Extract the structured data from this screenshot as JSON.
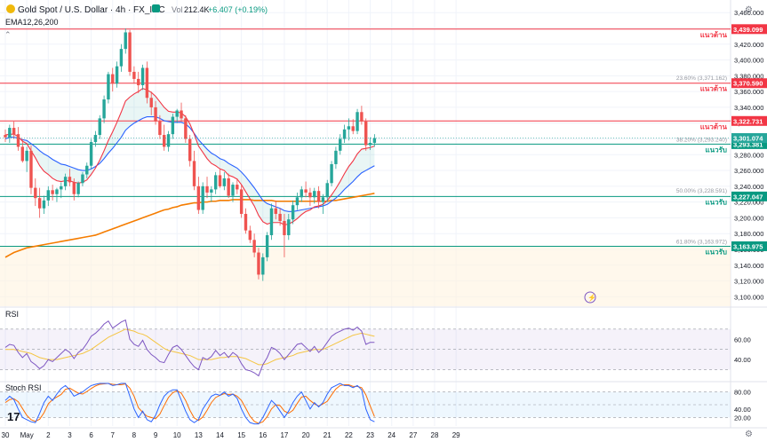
{
  "header": {
    "symbol": "Gold Spot / U.S. Dollar · 4h · FX_IDC",
    "vol_label": "Vol",
    "vol_value": "212.4K",
    "change": "+6.407 (+0.19%)",
    "ema_label": "EMA12,26,200"
  },
  "colors": {
    "up": "#26a69a",
    "down": "#ef5350",
    "ema12": "#f23645",
    "ema26": "#2962ff",
    "ema200": "#f57c00",
    "resistance": "#f23645",
    "support": "#089981",
    "rsi": "#7e57c2",
    "rsi_ma": "#f5c542",
    "stoch_k": "#2962ff",
    "stoch_d": "#ff6d00"
  },
  "chart_data": [
    {
      "type": "candlestick",
      "title": "Gold Spot / U.S. Dollar · 4h · FX_IDC",
      "y_axis": {
        "ticks": [
          "3,460.000",
          "3,440.000",
          "3,420.000",
          "3,400.000",
          "3,380.000",
          "3,360.000",
          "3,340.000",
          "3,320.000",
          "3,300.000",
          "3,280.000",
          "3,260.000",
          "3,240.000",
          "3,220.000",
          "3,200.000",
          "3,180.000",
          "3,160.000",
          "3,140.000",
          "3,120.000",
          "3,100.000"
        ],
        "ylim": [
          3088,
          3476
        ]
      },
      "x_axis": {
        "ticks": [
          "30",
          "May",
          "2",
          "3",
          "6",
          "7",
          "8",
          "9",
          "10",
          "13",
          "14",
          "15",
          "16",
          "17",
          "20",
          "21",
          "22",
          "23",
          "24",
          "27",
          "28",
          "29"
        ],
        "tick_pos": [
          0,
          5,
          10,
          15,
          20,
          25,
          30,
          35,
          40,
          45,
          50,
          55,
          60,
          65,
          70,
          75,
          80,
          85,
          90,
          95,
          100,
          105
        ]
      },
      "candles": [
        [
          3305,
          3312,
          3296,
          3302
        ],
        [
          3302,
          3318,
          3295,
          3314
        ],
        [
          3314,
          3322,
          3300,
          3306
        ],
        [
          3306,
          3315,
          3285,
          3290
        ],
        [
          3290,
          3300,
          3270,
          3272
        ],
        [
          3272,
          3290,
          3258,
          3285
        ],
        [
          3285,
          3292,
          3230,
          3238
        ],
        [
          3238,
          3250,
          3215,
          3225
        ],
        [
          3225,
          3238,
          3200,
          3212
        ],
        [
          3212,
          3228,
          3205,
          3222
        ],
        [
          3222,
          3240,
          3215,
          3235
        ],
        [
          3235,
          3242,
          3222,
          3230
        ],
        [
          3230,
          3238,
          3220,
          3236
        ],
        [
          3236,
          3245,
          3225,
          3240
        ],
        [
          3240,
          3256,
          3235,
          3252
        ],
        [
          3252,
          3262,
          3240,
          3245
        ],
        [
          3245,
          3250,
          3222,
          3230
        ],
        [
          3230,
          3246,
          3226,
          3244
        ],
        [
          3244,
          3258,
          3240,
          3255
        ],
        [
          3255,
          3270,
          3250,
          3266
        ],
        [
          3266,
          3300,
          3262,
          3296
        ],
        [
          3296,
          3310,
          3290,
          3305
        ],
        [
          3305,
          3330,
          3300,
          3326
        ],
        [
          3326,
          3355,
          3320,
          3350
        ],
        [
          3350,
          3385,
          3345,
          3382
        ],
        [
          3382,
          3390,
          3360,
          3370
        ],
        [
          3370,
          3398,
          3365,
          3392
        ],
        [
          3392,
          3420,
          3385,
          3414
        ],
        [
          3414,
          3440,
          3408,
          3435
        ],
        [
          3435,
          3438,
          3380,
          3385
        ],
        [
          3385,
          3392,
          3370,
          3376
        ],
        [
          3376,
          3385,
          3358,
          3368
        ],
        [
          3368,
          3394,
          3362,
          3390
        ],
        [
          3390,
          3398,
          3345,
          3352
        ],
        [
          3352,
          3360,
          3330,
          3340
        ],
        [
          3340,
          3348,
          3318,
          3322
        ],
        [
          3322,
          3330,
          3300,
          3305
        ],
        [
          3305,
          3318,
          3285,
          3290
        ],
        [
          3290,
          3310,
          3284,
          3306
        ],
        [
          3306,
          3332,
          3300,
          3328
        ],
        [
          3328,
          3338,
          3320,
          3336
        ],
        [
          3336,
          3346,
          3322,
          3326
        ],
        [
          3326,
          3330,
          3295,
          3300
        ],
        [
          3300,
          3305,
          3265,
          3272
        ],
        [
          3272,
          3285,
          3235,
          3240
        ],
        [
          3240,
          3252,
          3205,
          3210
        ],
        [
          3210,
          3245,
          3205,
          3240
        ],
        [
          3240,
          3252,
          3225,
          3232
        ],
        [
          3232,
          3240,
          3220,
          3236
        ],
        [
          3236,
          3258,
          3230,
          3254
        ],
        [
          3254,
          3262,
          3238,
          3240
        ],
        [
          3240,
          3258,
          3235,
          3250
        ],
        [
          3250,
          3256,
          3225,
          3228
        ],
        [
          3228,
          3245,
          3220,
          3242
        ],
        [
          3242,
          3250,
          3230,
          3236
        ],
        [
          3236,
          3242,
          3200,
          3205
        ],
        [
          3205,
          3212,
          3180,
          3184
        ],
        [
          3184,
          3190,
          3168,
          3172
        ],
        [
          3172,
          3180,
          3150,
          3156
        ],
        [
          3156,
          3162,
          3122,
          3128
        ],
        [
          3128,
          3155,
          3120,
          3150
        ],
        [
          3150,
          3182,
          3145,
          3178
        ],
        [
          3178,
          3218,
          3172,
          3212
        ],
        [
          3212,
          3222,
          3198,
          3205
        ],
        [
          3205,
          3212,
          3190,
          3196
        ],
        [
          3196,
          3205,
          3150,
          3178
        ],
        [
          3178,
          3205,
          3172,
          3198
        ],
        [
          3198,
          3222,
          3192,
          3216
        ],
        [
          3216,
          3232,
          3210,
          3226
        ],
        [
          3226,
          3240,
          3220,
          3236
        ],
        [
          3236,
          3246,
          3226,
          3232
        ],
        [
          3232,
          3238,
          3215,
          3226
        ],
        [
          3226,
          3238,
          3218,
          3234
        ],
        [
          3234,
          3240,
          3212,
          3220
        ],
        [
          3220,
          3230,
          3205,
          3226
        ],
        [
          3226,
          3248,
          3220,
          3244
        ],
        [
          3244,
          3272,
          3240,
          3268
        ],
        [
          3268,
          3290,
          3262,
          3285
        ],
        [
          3285,
          3306,
          3280,
          3300
        ],
        [
          3300,
          3318,
          3295,
          3312
        ],
        [
          3312,
          3326,
          3298,
          3316
        ],
        [
          3316,
          3325,
          3306,
          3310
        ],
        [
          3310,
          3338,
          3306,
          3334
        ],
        [
          3334,
          3342,
          3318,
          3322
        ],
        [
          3322,
          3326,
          3285,
          3292
        ],
        [
          3292,
          3302,
          3286,
          3295
        ],
        [
          3295,
          3306,
          3290,
          3301
        ]
      ],
      "ema12": [
        3305,
        3306,
        3306,
        3303,
        3297,
        3294,
        3285,
        3276,
        3266,
        3259,
        3255,
        3250,
        3247,
        3246,
        3247,
        3247,
        3245,
        3244,
        3245,
        3248,
        3255,
        3263,
        3273,
        3285,
        3298,
        3309,
        3321,
        3334,
        3348,
        3353,
        3357,
        3360,
        3364,
        3362,
        3359,
        3354,
        3347,
        3340,
        3335,
        3334,
        3334,
        3333,
        3328,
        3319,
        3306,
        3291,
        3283,
        3275,
        3269,
        3266,
        3262,
        3260,
        3254,
        3252,
        3249,
        3242,
        3233,
        3224,
        3215,
        3203,
        3195,
        3192,
        3194,
        3194,
        3194,
        3191,
        3192,
        3195,
        3199,
        3204,
        3208,
        3210,
        3214,
        3215,
        3217,
        3222,
        3229,
        3237,
        3246,
        3256,
        3265,
        3272,
        3281,
        3287,
        3288,
        3289,
        3291
      ],
      "ema26": [
        3300,
        3302,
        3302,
        3301,
        3299,
        3298,
        3294,
        3290,
        3285,
        3281,
        3278,
        3274,
        3271,
        3268,
        3267,
        3265,
        3263,
        3261,
        3260,
        3260,
        3262,
        3265,
        3269,
        3275,
        3282,
        3288,
        3295,
        3302,
        3311,
        3316,
        3320,
        3323,
        3326,
        3328,
        3328,
        3328,
        3326,
        3323,
        3322,
        3321,
        3321,
        3321,
        3319,
        3314,
        3307,
        3299,
        3293,
        3287,
        3282,
        3279,
        3275,
        3273,
        3269,
        3266,
        3263,
        3258,
        3252,
        3245,
        3238,
        3230,
        3222,
        3218,
        3216,
        3214,
        3212,
        3209,
        3208,
        3208,
        3209,
        3210,
        3211,
        3212,
        3213,
        3214,
        3215,
        3217,
        3221,
        3225,
        3230,
        3236,
        3241,
        3246,
        3252,
        3257,
        3260,
        3263,
        3266
      ],
      "ema200": [
        3150,
        3153,
        3156,
        3158,
        3160,
        3162,
        3163,
        3164,
        3165,
        3166,
        3167,
        3168,
        3169,
        3170,
        3171,
        3172,
        3173,
        3174,
        3175,
        3176,
        3177,
        3178,
        3180,
        3182,
        3184,
        3186,
        3188,
        3190,
        3192,
        3194,
        3196,
        3198,
        3200,
        3202,
        3204,
        3206,
        3208,
        3210,
        3211,
        3213,
        3214,
        3216,
        3217,
        3218,
        3219,
        3219,
        3220,
        3220,
        3221,
        3221,
        3222,
        3222,
        3222,
        3223,
        3223,
        3223,
        3223,
        3223,
        3222,
        3222,
        3222,
        3222,
        3222,
        3221,
        3221,
        3221,
        3221,
        3221,
        3221,
        3221,
        3221,
        3221,
        3221,
        3221,
        3221,
        3221,
        3222,
        3222,
        3223,
        3224,
        3225,
        3226,
        3227,
        3228,
        3229,
        3230,
        3231
      ],
      "levels": [
        {
          "name": "resistance-1",
          "label": "แนวต้าน",
          "price": 3439.099,
          "price_text": "3,439.099",
          "kind": "resistance"
        },
        {
          "name": "resistance-2",
          "label": "แนวต้าน",
          "price": 3370.59,
          "price_text": "3,370.590",
          "kind": "resistance"
        },
        {
          "name": "resistance-3",
          "label": "แนวต้าน",
          "price": 3322.731,
          "price_text": "3,322.731",
          "kind": "resistance"
        },
        {
          "name": "support-1",
          "label": "แนวรับ",
          "price": 3293.381,
          "price_text": "3,293.381",
          "kind": "support"
        },
        {
          "name": "support-2",
          "label": "แนวรับ",
          "price": 3227.047,
          "price_text": "3,227.047",
          "kind": "support"
        },
        {
          "name": "support-3",
          "label": "แนวรับ",
          "price": 3163.975,
          "price_text": "3,163.975",
          "kind": "support"
        }
      ],
      "current_price": {
        "price": 3301.074,
        "price_text": "3,301.074"
      },
      "fib": [
        {
          "label": "23.60% (3,371.162)",
          "price": 3371.162
        },
        {
          "label": "38.20% (3,293.240)",
          "price": 3293.24
        },
        {
          "label": "50.00% (3,228.591)",
          "price": 3228.591
        },
        {
          "label": "61.80% (3,163.972)",
          "price": 3163.972
        }
      ]
    },
    {
      "type": "line",
      "title": "RSI",
      "ylim": [
        20,
        90
      ],
      "ticks": [
        "60.00",
        "40.00"
      ],
      "band": [
        30,
        70
      ],
      "rsi": [
        52,
        55,
        54,
        47,
        42,
        46,
        38,
        35,
        31,
        34,
        40,
        38,
        42,
        46,
        50,
        47,
        41,
        47,
        50,
        56,
        63,
        66,
        70,
        75,
        78,
        71,
        74,
        77,
        79,
        60,
        55,
        53,
        59,
        50,
        45,
        42,
        38,
        37,
        45,
        52,
        54,
        50,
        44,
        38,
        33,
        30,
        42,
        40,
        43,
        49,
        44,
        47,
        42,
        47,
        44,
        36,
        30,
        29,
        27,
        24,
        35,
        42,
        52,
        50,
        46,
        40,
        45,
        50,
        55,
        56,
        52,
        48,
        53,
        47,
        51,
        57,
        63,
        66,
        68,
        70,
        71,
        69,
        72,
        68,
        55,
        57,
        57
      ],
      "rsi_ma": [
        50,
        50,
        50,
        49,
        48,
        47,
        46,
        44,
        42,
        41,
        40,
        40,
        40,
        41,
        42,
        43,
        44,
        45,
        46,
        48,
        50,
        53,
        56,
        59,
        62,
        64,
        66,
        68,
        70,
        69,
        68,
        66,
        65,
        63,
        60,
        57,
        54,
        51,
        49,
        48,
        47,
        46,
        45,
        44,
        42,
        40,
        40,
        40,
        40,
        41,
        42,
        42,
        43,
        43,
        43,
        42,
        41,
        39,
        37,
        35,
        35,
        36,
        38,
        40,
        41,
        42,
        43,
        44,
        46,
        47,
        48,
        49,
        50,
        50,
        50,
        52,
        54,
        56,
        58,
        60,
        62,
        64,
        65,
        66,
        65,
        64,
        63
      ]
    },
    {
      "type": "line",
      "title": "Stoch RSI",
      "ylim": [
        0,
        100
      ],
      "ticks": [
        "80.00",
        "40.00",
        "20.00"
      ],
      "band": [
        20,
        80
      ],
      "k": [
        60,
        70,
        62,
        40,
        20,
        15,
        10,
        8,
        30,
        55,
        70,
        60,
        75,
        88,
        95,
        85,
        70,
        75,
        80,
        88,
        95,
        98,
        100,
        100,
        100,
        95,
        97,
        100,
        100,
        70,
        40,
        20,
        35,
        15,
        10,
        25,
        50,
        70,
        80,
        85,
        85,
        60,
        35,
        15,
        8,
        15,
        40,
        55,
        70,
        75,
        72,
        80,
        70,
        75,
        65,
        40,
        20,
        8,
        5,
        5,
        20,
        40,
        60,
        50,
        35,
        20,
        35,
        55,
        70,
        80,
        60,
        40,
        55,
        45,
        55,
        75,
        90,
        95,
        100,
        95,
        95,
        90,
        95,
        85,
        40,
        15,
        10
      ],
      "d": [
        55,
        62,
        64,
        57,
        41,
        25,
        15,
        11,
        16,
        31,
        52,
        62,
        68,
        74,
        86,
        89,
        83,
        77,
        75,
        81,
        88,
        94,
        98,
        99,
        100,
        98,
        97,
        97,
        99,
        89,
        70,
        43,
        32,
        23,
        20,
        17,
        28,
        48,
        67,
        78,
        83,
        77,
        60,
        37,
        19,
        13,
        21,
        37,
        55,
        67,
        72,
        76,
        74,
        75,
        70,
        60,
        42,
        23,
        11,
        6,
        10,
        22,
        40,
        50,
        48,
        35,
        30,
        37,
        53,
        68,
        70,
        60,
        52,
        47,
        52,
        58,
        73,
        87,
        95,
        97,
        97,
        93,
        93,
        90,
        73,
        47,
        22
      ]
    }
  ]
}
